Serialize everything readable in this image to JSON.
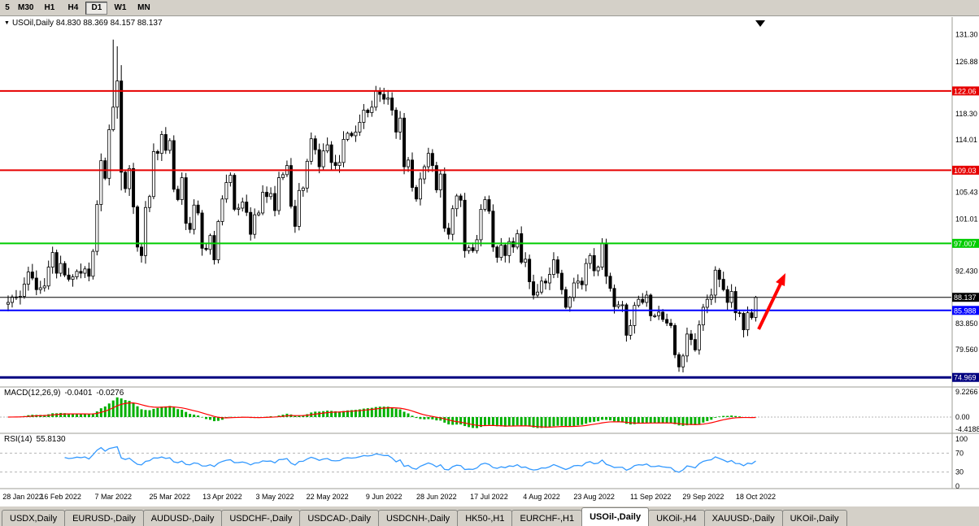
{
  "toolbar": {
    "timeframes": [
      {
        "label": "5",
        "active": false
      },
      {
        "label": "M30",
        "active": false
      },
      {
        "label": "H1",
        "active": false
      },
      {
        "label": "H4",
        "active": false
      },
      {
        "label": "D1",
        "active": true
      },
      {
        "label": "W1",
        "active": false
      },
      {
        "label": "MN",
        "active": false
      }
    ]
  },
  "chart_window": {
    "quote_line": "USOil,Daily 84.830 88.369 84.157 88.137",
    "symbol": "USOil",
    "period": "Daily"
  },
  "indicators": {
    "macd": {
      "name": "MACD(12,26,9)",
      "value": "-0.0401",
      "signal": "-0.0276"
    },
    "rsi": {
      "name": "RSI(14)",
      "value": "55.8130"
    }
  },
  "price_axis": {
    "ticks": [
      {
        "label": "131.30",
        "value": 131.3
      },
      {
        "label": "126.88",
        "value": 126.88
      },
      {
        "label": "118.30",
        "value": 118.3
      },
      {
        "label": "114.01",
        "value": 114.01
      },
      {
        "label": "105.43",
        "value": 105.43
      },
      {
        "label": "101.01",
        "value": 101.01
      },
      {
        "label": "92.430",
        "value": 92.43
      },
      {
        "label": "83.850",
        "value": 83.85
      },
      {
        "label": "79.560",
        "value": 79.56
      }
    ],
    "tags": [
      {
        "label": "122.06",
        "value": 122.06,
        "color": "#e60000",
        "text": "#ffffff"
      },
      {
        "label": "109.03",
        "value": 109.03,
        "color": "#e60000",
        "text": "#ffffff"
      },
      {
        "label": "97.007",
        "value": 97.007,
        "color": "#00cc00",
        "text": "#ffffff"
      },
      {
        "label": "88.137",
        "value": 88.137,
        "color": "#000000",
        "text": "#ffffff"
      },
      {
        "label": "85.988",
        "value": 85.988,
        "color": "#0000ff",
        "text": "#ffffff"
      },
      {
        "label": "74.969",
        "value": 74.969,
        "color": "#000080",
        "text": "#ffffff"
      }
    ]
  },
  "macd_axis": [
    {
      "label": "9.2266",
      "value": 9.2266
    },
    {
      "label": "0.00",
      "value": 0
    },
    {
      "label": "-4.4188",
      "value": -4.4188
    }
  ],
  "rsi_axis": [
    {
      "label": "100",
      "value": 100
    },
    {
      "label": "70",
      "value": 70
    },
    {
      "label": "30",
      "value": 30
    },
    {
      "label": "0",
      "value": 0
    }
  ],
  "date_axis": [
    "28 Jan 2022",
    "16 Feb 2022",
    "7 Mar 2022",
    "25 Mar 2022",
    "13 Apr 2022",
    "3 May 2022",
    "22 May 2022",
    "9 Jun 2022",
    "28 Jun 2022",
    "17 Jul 2022",
    "4 Aug 2022",
    "23 Aug 2022",
    "11 Sep 2022",
    "29 Sep 2022",
    "18 Oct 2022"
  ],
  "tabs": [
    {
      "label": "USDX,Daily",
      "active": false
    },
    {
      "label": "EURUSD-,Daily",
      "active": false
    },
    {
      "label": "AUDUSD-,Daily",
      "active": false
    },
    {
      "label": "USDCHF-,Daily",
      "active": false
    },
    {
      "label": "USDCAD-,Daily",
      "active": false
    },
    {
      "label": "USDCNH-,Daily",
      "active": false
    },
    {
      "label": "HK50-,H1",
      "active": false
    },
    {
      "label": "EURCHF-,H1",
      "active": false
    },
    {
      "label": "USOil-,Daily",
      "active": true
    },
    {
      "label": "UKOil-,H4",
      "active": false
    },
    {
      "label": "XAUUSD-,Daily",
      "active": false
    },
    {
      "label": "UKOil-,Daily",
      "active": false
    }
  ],
  "chart_data": {
    "type": "candlestick",
    "title": "USOil, Daily",
    "y_range": [
      74.2,
      132.6
    ],
    "first_open": 87.0,
    "closes": [
      87.3,
      88.2,
      88.2,
      88.3,
      90.3,
      92.3,
      91.3,
      89.4,
      89.7,
      90.0,
      93.1,
      95.5,
      92.1,
      93.7,
      91.8,
      91.1,
      91.5,
      92.4,
      92.1,
      92.8,
      91.6,
      95.7,
      103.4,
      110.6,
      107.7,
      115.7,
      119.4,
      123.7,
      108.7,
      106.0,
      109.3,
      103.0,
      96.4,
      95.0,
      102.9,
      104.7,
      112.1,
      111.8,
      114.9,
      112.3,
      113.9,
      105.9,
      104.2,
      107.8,
      100.3,
      99.3,
      103.3,
      102.0,
      96.2,
      96.0,
      98.3,
      94.3,
      100.6,
      104.3,
      107.0,
      108.2,
      102.6,
      102.8,
      103.8,
      102.1,
      98.5,
      101.7,
      102.0,
      105.4,
      104.7,
      105.2,
      102.4,
      107.8,
      108.3,
      109.8,
      103.1,
      99.8,
      105.7,
      106.1,
      110.5,
      114.2,
      112.4,
      109.6,
      112.2,
      113.2,
      110.3,
      109.8,
      110.3,
      114.1,
      115.1,
      114.7,
      115.3,
      116.9,
      118.9,
      118.5,
      119.4,
      122.1,
      121.5,
      120.7,
      120.9,
      118.9,
      115.3,
      117.6,
      109.6,
      110.7,
      106.2,
      104.3,
      107.6,
      109.6,
      111.8,
      109.8,
      105.8,
      108.4,
      99.5,
      98.5,
      102.7,
      104.8,
      104.1,
      95.8,
      96.3,
      95.8,
      97.6,
      102.6,
      104.2,
      102.3,
      96.4,
      94.7,
      96.7,
      95.0,
      97.3,
      96.4,
      98.6,
      93.9,
      94.4,
      90.7,
      88.5,
      89.0,
      90.8,
      90.5,
      91.9,
      94.3,
      92.1,
      89.4,
      86.5,
      88.1,
      90.5,
      90.8,
      90.2,
      93.7,
      95.0,
      92.5,
      93.1,
      97.0,
      91.6,
      89.6,
      86.6,
      86.9,
      86.9,
      81.9,
      83.5,
      86.8,
      87.8,
      87.3,
      88.5,
      85.1,
      85.1,
      85.7,
      84.5,
      83.9,
      83.5,
      78.7,
      76.7,
      78.5,
      82.1,
      81.2,
      79.5,
      83.6,
      86.5,
      87.8,
      88.5,
      92.6,
      91.1,
      89.4,
      87.3,
      89.1,
      85.6,
      85.5,
      82.8,
      85.6,
      84.8,
      88.137
    ],
    "overrides": {
      "26": [
        115.7,
        130.5,
        115.4,
        119.4
      ],
      "27": [
        119.4,
        129.4,
        117.5,
        123.7
      ],
      "28": [
        123.7,
        126.3,
        105.7,
        108.7
      ],
      "185": [
        84.83,
        88.369,
        84.157,
        88.137
      ]
    },
    "hlines": [
      {
        "value": 122.06,
        "color": "#e60000",
        "width": 2
      },
      {
        "value": 109.03,
        "color": "#e60000",
        "width": 2
      },
      {
        "value": 97.007,
        "color": "#00cc00",
        "width": 2
      },
      {
        "value": 88.137,
        "color": "#000000",
        "width": 1
      },
      {
        "value": 85.988,
        "color": "#0000ff",
        "width": 2
      },
      {
        "value": 74.969,
        "color": "#000080",
        "width": 3
      }
    ],
    "style": {
      "bull_fill": "#ffffff",
      "bear_fill": "#000000",
      "outline": "#000000",
      "macd_hist": "#00b000",
      "macd_signal": "#ff0000",
      "rsi_line": "#3399ff",
      "arrow": "#ff0000"
    },
    "macd": {
      "fast": 12,
      "slow": 26,
      "signal": 9,
      "y_range": [
        -4.4188,
        9.2266
      ]
    },
    "rsi": {
      "period": 14,
      "levels": [
        70,
        30
      ],
      "y_range": [
        0,
        100
      ]
    }
  }
}
